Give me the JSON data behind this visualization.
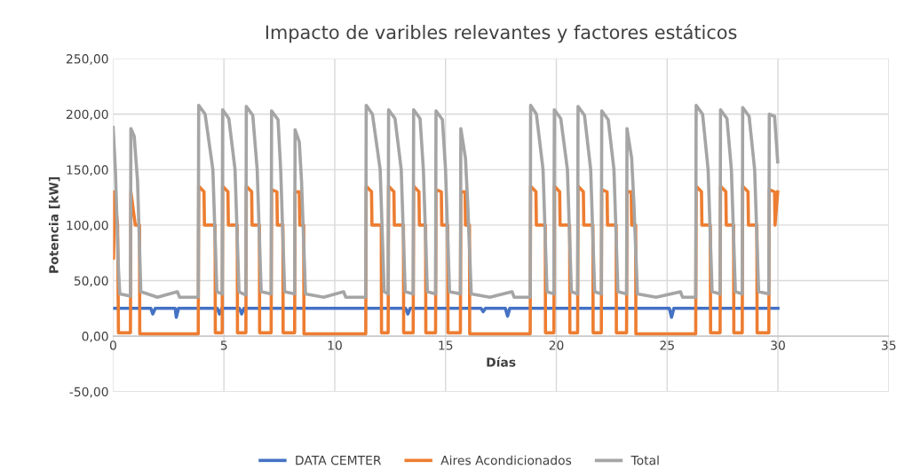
{
  "chart_data": {
    "type": "line",
    "title": "Impacto de varibles relevantes y factores estáticos",
    "xlabel": "Días",
    "ylabel": "Potencia [kW]",
    "xlim": [
      0,
      35
    ],
    "xticks": [
      0,
      5,
      10,
      15,
      20,
      25,
      30,
      35
    ],
    "ylim": [
      -50,
      250
    ],
    "yticks": [
      {
        "value": -50,
        "label": "-50,00"
      },
      {
        "value": 0,
        "label": "0,00"
      },
      {
        "value": 50,
        "label": "50,00"
      },
      {
        "value": 100,
        "label": "100,00"
      },
      {
        "value": 150,
        "label": "150,00"
      },
      {
        "value": 200,
        "label": "200,00"
      },
      {
        "value": 250,
        "label": "250,00"
      }
    ],
    "grid": true,
    "legend": "bottom",
    "marker": "none",
    "line_style": "solid",
    "series": [
      {
        "name": "DATA CEMTER",
        "color": "#4472c4",
        "x": [
          0,
          1.7,
          1.79,
          1.9,
          2.8,
          2.85,
          2.95,
          4.7,
          4.8,
          4.9,
          5.7,
          5.8,
          5.9,
          13.2,
          13.3,
          13.4,
          16.6,
          16.7,
          16.8,
          17.7,
          17.8,
          17.9,
          25.1,
          25.2,
          25.3,
          30
        ],
        "values": [
          25,
          25,
          20,
          25,
          25,
          17,
          25,
          25,
          20,
          25,
          25,
          20,
          25,
          25,
          20,
          25,
          25,
          22,
          25,
          25,
          18,
          25,
          25,
          17,
          25,
          25
        ]
      },
      {
        "name": "Aires Acondicionados",
        "color": "#ed7d31",
        "x": [
          0,
          0.02,
          0.05,
          0.2,
          0.24,
          0.78,
          0.8,
          1.0,
          1.19,
          1.2,
          3.84,
          3.86,
          4.1,
          4.12,
          4.6,
          4.61,
          4.92,
          4.94,
          5.18,
          5.2,
          5.6,
          5.61,
          5.99,
          6.01,
          6.25,
          6.27,
          6.6,
          6.61,
          7.13,
          7.15,
          7.39,
          7.41,
          7.66,
          7.67,
          8.19,
          8.21,
          8.4,
          8.42,
          8.6,
          8.61,
          11.4,
          11.42,
          11.66,
          11.68,
          12.1,
          12.11,
          12.41,
          12.43,
          12.67,
          12.69,
          13.1,
          13.11,
          13.54,
          13.56,
          13.8,
          13.82,
          14.1,
          14.11,
          14.55,
          14.57,
          14.81,
          14.83,
          15.1,
          15.11,
          15.67,
          15.69,
          15.88,
          15.9,
          16.08,
          16.09,
          18.82,
          18.84,
          19.08,
          19.1,
          19.5,
          19.51,
          19.89,
          19.91,
          20.15,
          20.17,
          20.6,
          20.61,
          20.96,
          20.98,
          21.22,
          21.24,
          21.65,
          21.66,
          22.03,
          22.05,
          22.29,
          22.31,
          22.7,
          22.71,
          23.17,
          23.19,
          23.38,
          23.4,
          23.58,
          23.59,
          26.29,
          26.31,
          26.55,
          26.57,
          26.95,
          26.96,
          27.39,
          27.41,
          27.65,
          27.67,
          28.0,
          28.01,
          28.39,
          28.41,
          28.65,
          28.67,
          29.05,
          29.06,
          29.59,
          29.61,
          29.85,
          29.87,
          29.99
        ],
        "values": [
          125,
          70,
          130,
          100,
          3,
          3,
          130,
          100,
          100,
          2,
          2,
          135,
          130,
          100,
          100,
          3,
          3,
          135,
          130,
          100,
          100,
          3,
          3,
          135,
          130,
          100,
          100,
          3,
          3,
          132,
          130,
          100,
          100,
          3,
          3,
          130,
          130,
          100,
          100,
          2,
          2,
          135,
          130,
          100,
          100,
          3,
          3,
          135,
          130,
          100,
          100,
          3,
          3,
          135,
          130,
          100,
          100,
          3,
          3,
          132,
          130,
          100,
          100,
          3,
          3,
          130,
          130,
          100,
          100,
          2,
          2,
          135,
          130,
          100,
          100,
          3,
          3,
          135,
          130,
          100,
          100,
          3,
          3,
          135,
          130,
          100,
          100,
          3,
          3,
          132,
          130,
          100,
          100,
          3,
          3,
          130,
          130,
          100,
          100,
          2,
          2,
          135,
          130,
          100,
          100,
          3,
          3,
          135,
          130,
          100,
          100,
          3,
          3,
          135,
          130,
          100,
          100,
          3,
          3,
          132,
          130,
          100,
          130
        ]
      },
      {
        "name": "Total",
        "color": "#a5a5a5",
        "x": [
          0,
          0.1,
          0.24,
          0.3,
          0.78,
          0.8,
          0.95,
          1.1,
          1.25,
          2.0,
          2.9,
          3.0,
          3.84,
          3.86,
          4.15,
          4.5,
          4.68,
          4.92,
          4.94,
          5.22,
          5.5,
          5.68,
          5.99,
          6.01,
          6.3,
          6.5,
          6.68,
          7.13,
          7.15,
          7.44,
          7.56,
          7.74,
          8.19,
          8.21,
          8.4,
          8.5,
          8.68,
          9.5,
          10.4,
          10.5,
          11.4,
          11.42,
          11.7,
          12.05,
          12.23,
          12.41,
          12.43,
          12.72,
          13.0,
          13.18,
          13.54,
          13.56,
          13.85,
          14.0,
          14.18,
          14.55,
          14.57,
          14.86,
          15.0,
          15.18,
          15.67,
          15.69,
          15.9,
          16.0,
          16.16,
          17,
          18,
          18.1,
          18.82,
          18.84,
          19.1,
          19.4,
          19.58,
          19.89,
          19.91,
          20.2,
          20.5,
          20.68,
          20.96,
          20.98,
          21.27,
          21.55,
          21.73,
          22.03,
          22.05,
          22.34,
          22.6,
          22.78,
          23.17,
          23.19,
          23.4,
          23.5,
          23.66,
          24.5,
          25.6,
          25.7,
          26.29,
          26.31,
          26.6,
          26.85,
          27.03,
          27.39,
          27.41,
          27.7,
          27.9,
          28.08,
          28.39,
          28.41,
          28.7,
          28.95,
          29.13,
          29.59,
          29.61,
          29.85,
          29.99
        ],
        "values": [
          188,
          150,
          60,
          38,
          36,
          187,
          180,
          140,
          40,
          35,
          40,
          35,
          35,
          208,
          200,
          150,
          40,
          38,
          204,
          196,
          150,
          40,
          37,
          207,
          199,
          150,
          40,
          38,
          203,
          195,
          150,
          40,
          38,
          186,
          175,
          140,
          38,
          35,
          40,
          35,
          35,
          208,
          200,
          150,
          40,
          38,
          204,
          196,
          150,
          40,
          38,
          204,
          196,
          150,
          40,
          38,
          203,
          195,
          150,
          40,
          38,
          187,
          160,
          120,
          38,
          35,
          40,
          35,
          35,
          208,
          200,
          150,
          40,
          38,
          204,
          196,
          150,
          40,
          38,
          207,
          199,
          150,
          40,
          38,
          203,
          195,
          150,
          40,
          38,
          187,
          160,
          120,
          38,
          35,
          40,
          35,
          35,
          208,
          200,
          150,
          40,
          38,
          204,
          196,
          150,
          40,
          38,
          206,
          198,
          150,
          40,
          38,
          200,
          198,
          157
        ]
      }
    ]
  }
}
